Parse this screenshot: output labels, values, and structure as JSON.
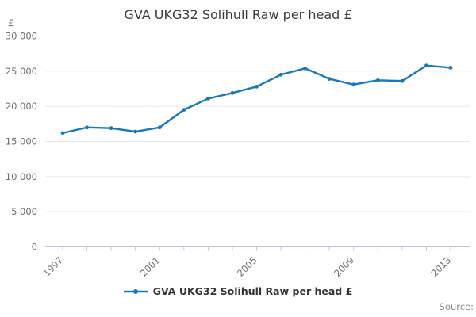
{
  "chart_data": {
    "type": "line",
    "title": "GVA UKG32 Solihull Raw per head £",
    "y_unit_label": "£",
    "series": [
      {
        "name": "GVA UKG32 Solihull Raw per head £",
        "x": [
          1997,
          1998,
          1999,
          2000,
          2001,
          2002,
          2003,
          2004,
          2005,
          2006,
          2007,
          2008,
          2009,
          2010,
          2011,
          2012,
          2013
        ],
        "values": [
          16200,
          17000,
          16900,
          16400,
          17000,
          19500,
          21100,
          21900,
          22800,
          24500,
          25400,
          23900,
          23100,
          23700,
          23600,
          25800,
          25500
        ]
      }
    ],
    "ylim": [
      0,
      30000
    ],
    "y_tick_interval": 5000,
    "y_tick_labels": [
      "0",
      "5 000",
      "10 000",
      "15 000",
      "20 000",
      "25 000",
      "30 000"
    ],
    "x_ticks_every_year": true,
    "x_tick_labels_shown": [
      "1997",
      "2001",
      "2005",
      "2009",
      "2013"
    ],
    "grid": "horizontal",
    "legend_position": "bottom",
    "source_label": "Source:",
    "colors": {
      "line": "#1878b8",
      "grid": "#e6e6e6",
      "axis": "#b9c7dd",
      "title_text": "#3a3a3a",
      "tick_text": "#6e6e6e",
      "legend_text": "#333333",
      "source_text": "#8c8c8c"
    }
  }
}
